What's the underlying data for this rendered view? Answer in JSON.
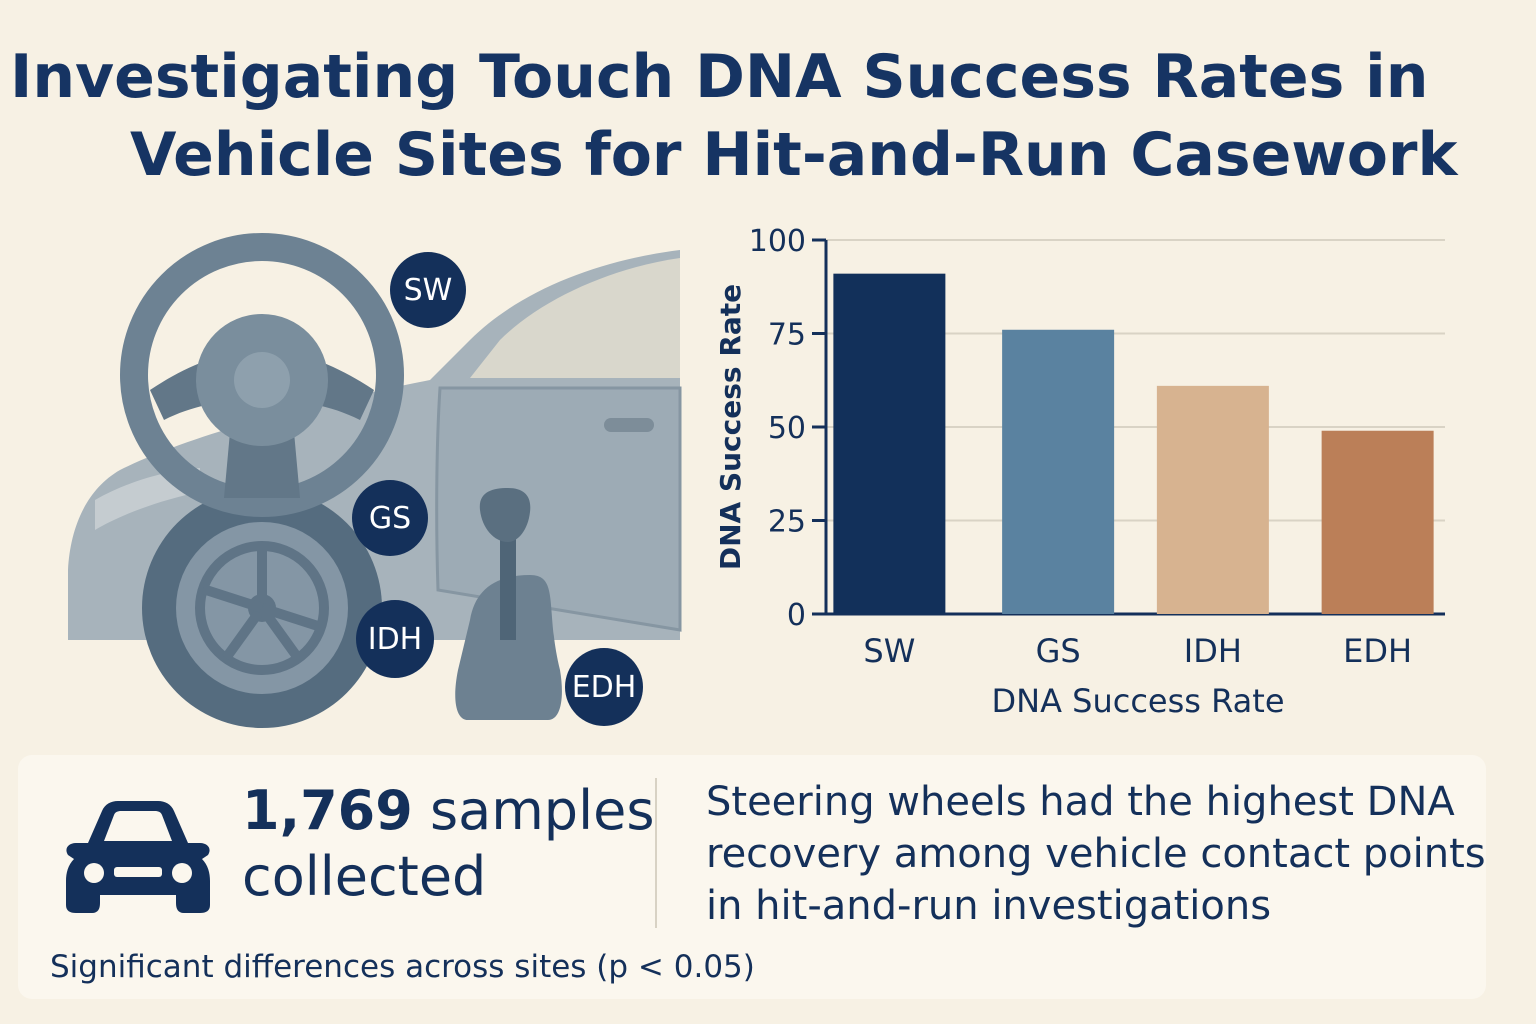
{
  "title": {
    "line1": "Investigating Touch DNA Success Rates in",
    "line2": "Vehicle Sites for Hit-and-Run Casework"
  },
  "illustration": {
    "badges": {
      "sw": "SW",
      "gs": "GS",
      "idh": "IDH",
      "edh": "EDH"
    },
    "icons": [
      "steering-wheel-icon",
      "car-side-icon",
      "tire-icon",
      "gear-shift-icon"
    ]
  },
  "chart_data": {
    "type": "bar",
    "categories": [
      "SW",
      "GS",
      "IDH",
      "EDH"
    ],
    "values": [
      91,
      76,
      61,
      49
    ],
    "colors": [
      "#12305a",
      "#5a82a0",
      "#d7b390",
      "#bb7f58"
    ],
    "ylabel": "DNA Success Rate",
    "xlabel": "DNA Success Rate",
    "ylim": [
      0,
      100
    ],
    "yticks": [
      0,
      25,
      50,
      75,
      100
    ],
    "grid": true
  },
  "summary": {
    "sample_count": "1,769",
    "sample_text": "samples",
    "sample_text2": "collected",
    "finding_line1": "Steering wheels had the highest DNA",
    "finding_line2": "recovery among vehicle contact points",
    "finding_line3": "in hit-and-run investigations",
    "note": "Significant differences across sites (p < 0.05)"
  },
  "colors": {
    "navy": "#14305a",
    "background": "#f7f1e4"
  }
}
